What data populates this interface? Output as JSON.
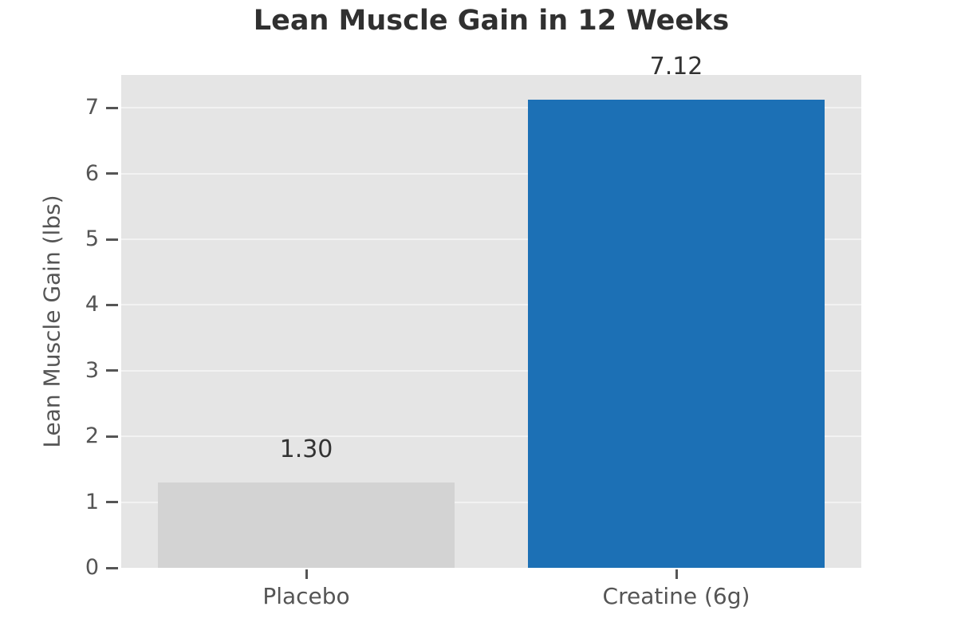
{
  "chart_data": {
    "type": "bar",
    "title": "Lean Muscle Gain in 12 Weeks",
    "categories": [
      "Placebo",
      "Creatine (6g)"
    ],
    "values": [
      1.3,
      7.12
    ],
    "value_labels": [
      "1.30",
      "7.12"
    ],
    "bar_colors": [
      "#d3d3d3",
      "#1c70b5"
    ],
    "ylabel": "Lean Muscle Gain (lbs)",
    "xlabel": "",
    "ylim": [
      0,
      7.5
    ],
    "yticks": [
      0,
      1,
      2,
      3,
      4,
      5,
      6,
      7
    ],
    "grid": true,
    "legend": false,
    "colors": {
      "plot_background": "#e5e5e5",
      "gridline": "#f2f2f2",
      "title_text": "#303030",
      "tick_text": "#555555",
      "tick_mark": "#555555",
      "annotation_text": "#333333"
    }
  }
}
